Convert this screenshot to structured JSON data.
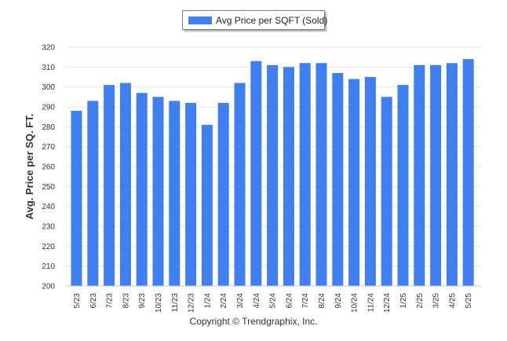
{
  "chart_data": {
    "type": "bar",
    "legend": {
      "label": "Avg Price per SQFT (Sold)",
      "placement": "top-center"
    },
    "ylabel": "Avg. Price per SQ. FT.",
    "xlabel": "",
    "ylim": [
      200,
      320
    ],
    "yticks": [
      200,
      210,
      220,
      230,
      240,
      250,
      260,
      270,
      280,
      290,
      300,
      310,
      320
    ],
    "grid": true,
    "bar_color": "#3f7ff0",
    "categories": [
      "5/23",
      "6/23",
      "7/23",
      "8/23",
      "9/23",
      "10/23",
      "11/23",
      "12/23",
      "1/24",
      "2/24",
      "3/24",
      "4/24",
      "5/24",
      "6/24",
      "7/24",
      "8/24",
      "9/24",
      "10/24",
      "11/24",
      "12/24",
      "1/25",
      "2/25",
      "3/25",
      "4/25",
      "5/25"
    ],
    "series": [
      {
        "values": [
          288,
          293,
          301,
          302,
          297,
          295,
          293,
          292,
          281,
          292,
          302,
          313,
          311,
          310,
          312,
          312,
          307,
          304,
          305,
          295,
          301,
          311,
          311,
          312,
          314
        ]
      }
    ]
  },
  "footer": {
    "copyright": "Copyright © Trendgraphix, Inc."
  }
}
